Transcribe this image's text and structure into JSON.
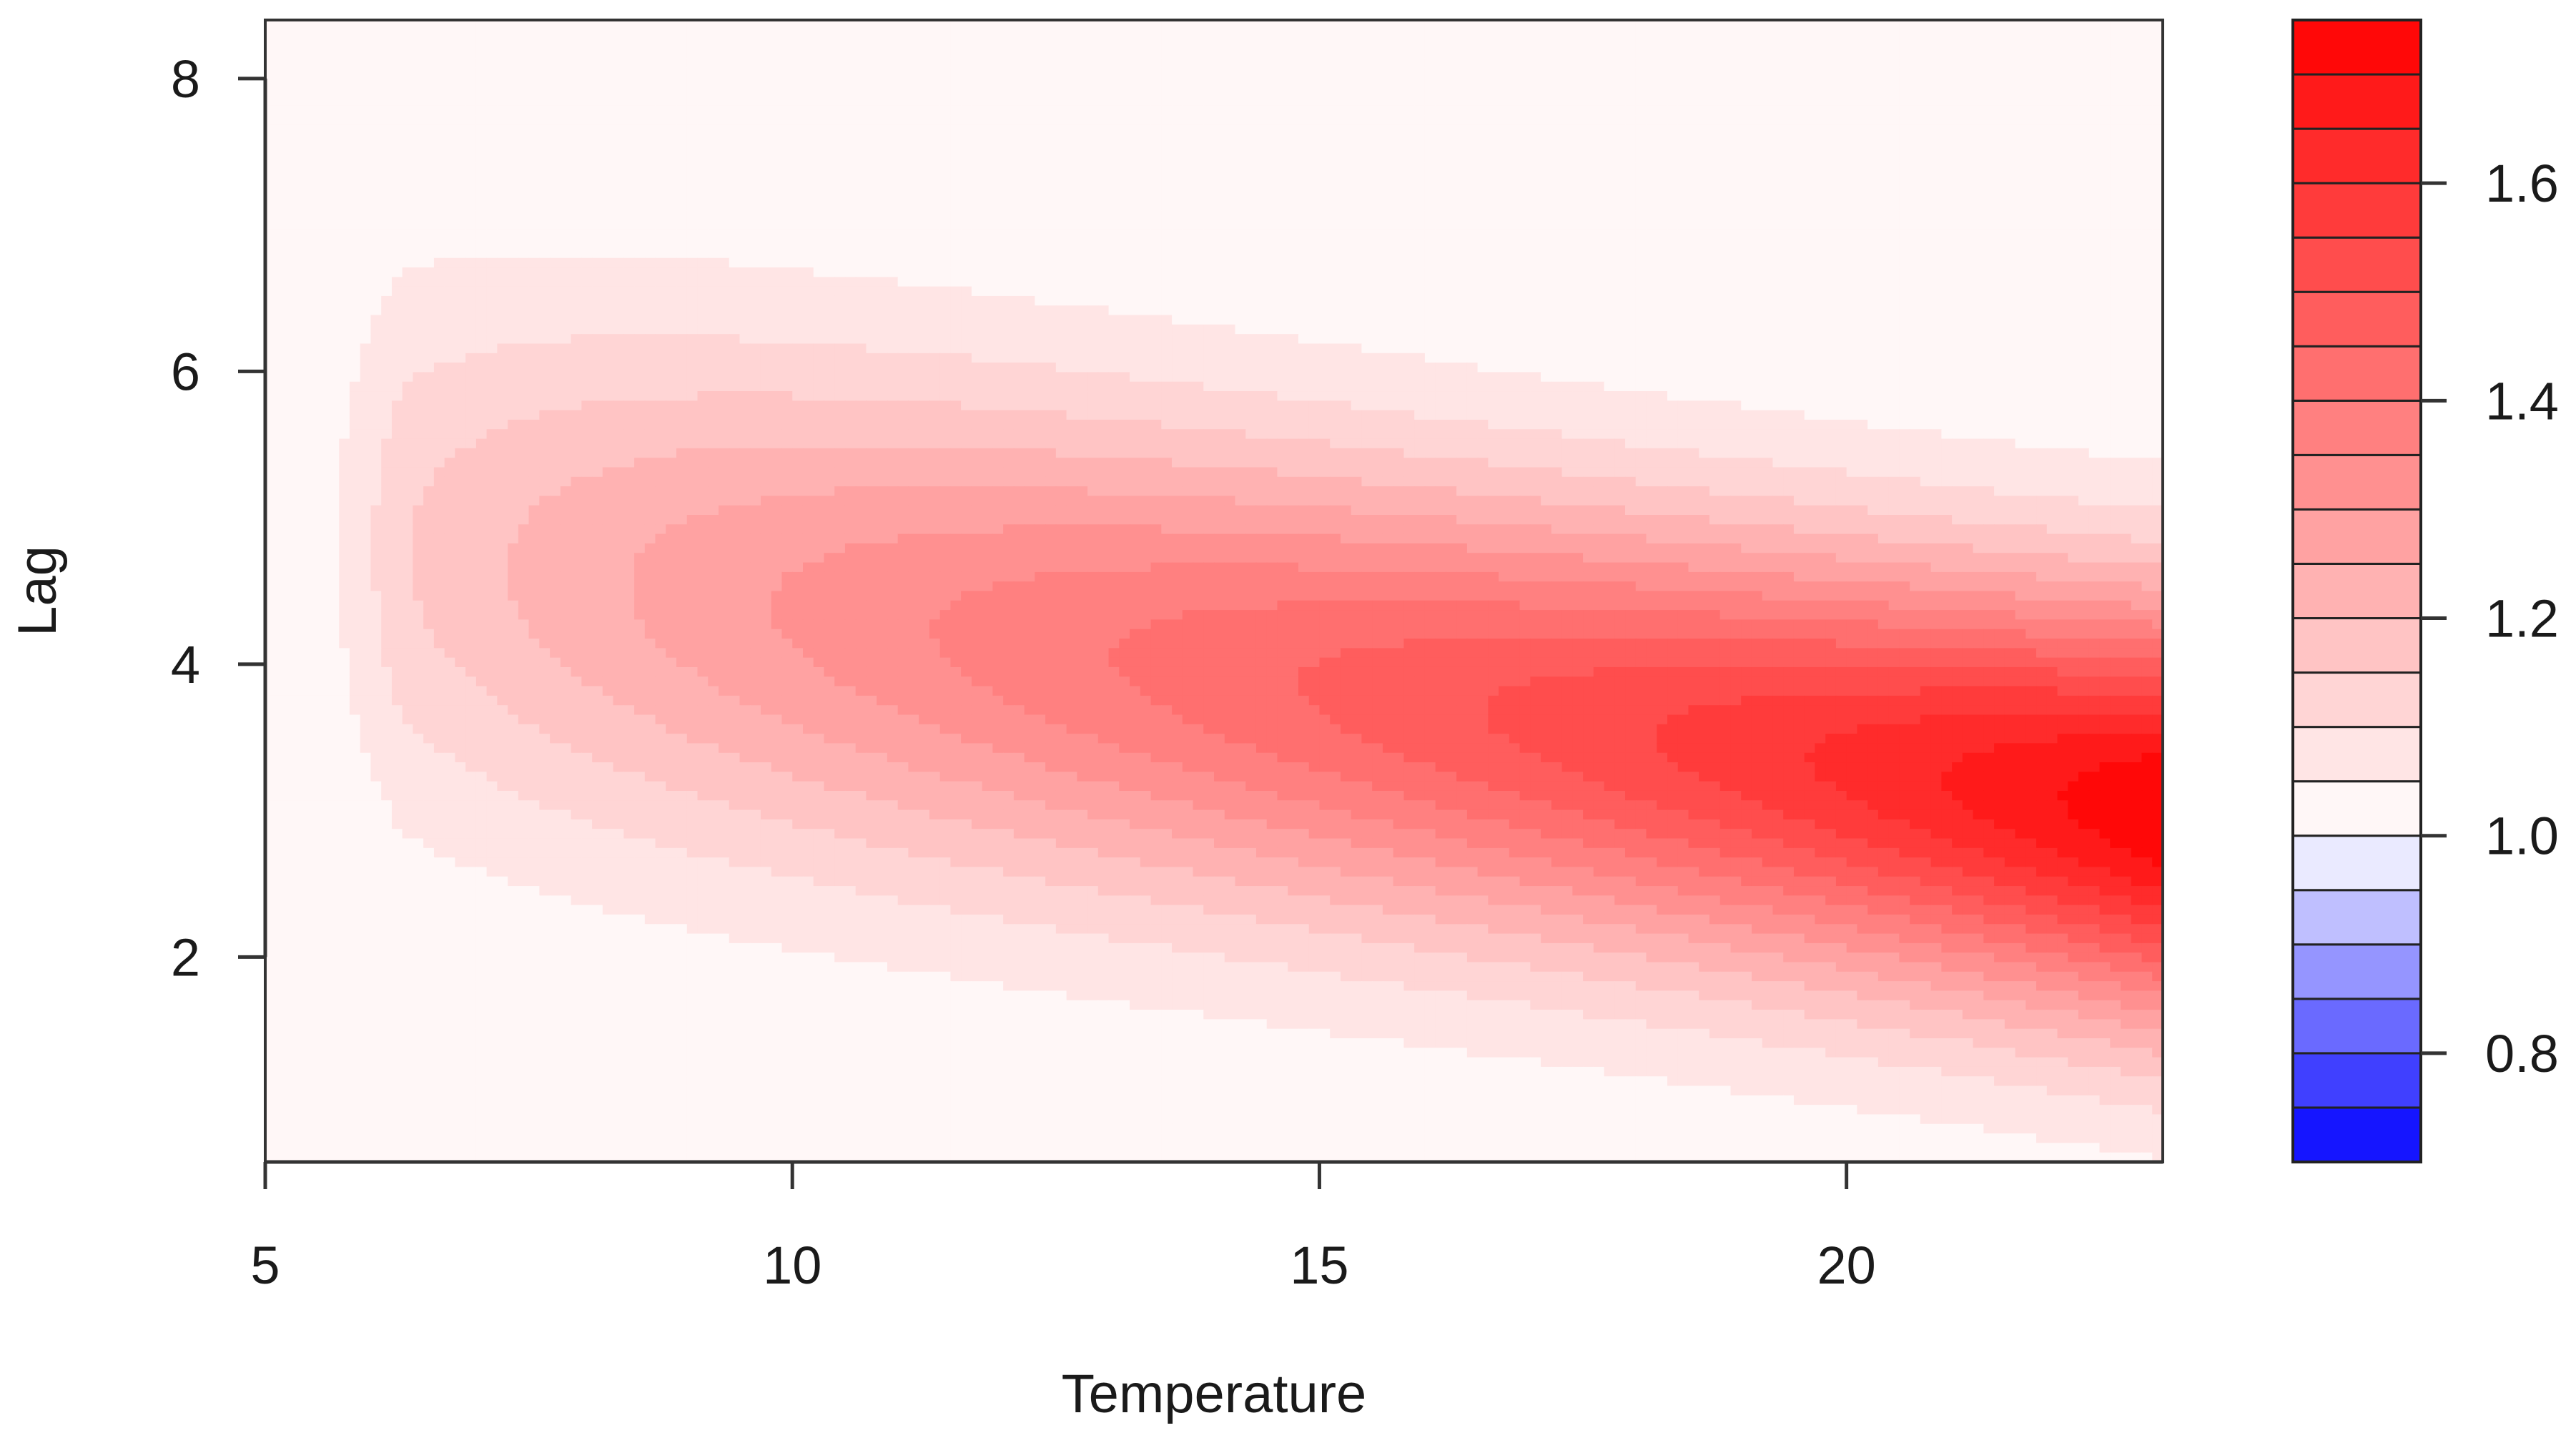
{
  "chart_data": {
    "type": "heatmap",
    "subtype": "filled-contour",
    "title": "",
    "xlabel": "Temperature",
    "ylabel": "Lag",
    "xlim": [
      5,
      23
    ],
    "ylim": [
      0.6,
      8.4
    ],
    "xticks": [
      5,
      10,
      15,
      20
    ],
    "xtick_labels": [
      "5",
      "10",
      "15",
      "20"
    ],
    "yticks": [
      2,
      4,
      6,
      8
    ],
    "ytick_labels": [
      "2",
      "4",
      "6",
      "8"
    ],
    "grid": false,
    "legend": "right",
    "colorbar": {
      "levels": [
        0.7,
        0.75,
        0.8,
        0.85,
        0.9,
        0.95,
        1.0,
        1.05,
        1.1,
        1.15,
        1.2,
        1.25,
        1.3,
        1.35,
        1.4,
        1.45,
        1.5,
        1.55,
        1.6,
        1.65,
        1.7,
        1.75
      ],
      "ticks": [
        0.8,
        1.0,
        1.2,
        1.4,
        1.6
      ],
      "tick_labels": [
        "0.8",
        "1.0",
        "1.2",
        "1.4",
        "1.6"
      ],
      "low_color": "#0000ff",
      "mid_color": "#ffffff",
      "high_color": "#ff0000",
      "mid_value": 1.0
    },
    "surface": {
      "description_values": "Relative risk surface: peak ~1.75 at Temperature 23, Lag 3; about 1.45 at Temperature 15, Lag 4; ~1.0 at Temperature 5 and at Lag 0.6 / Lag 8.4",
      "peak": {
        "x": 23,
        "y": 3,
        "value": 1.75
      },
      "min_value": 1.0
    }
  }
}
